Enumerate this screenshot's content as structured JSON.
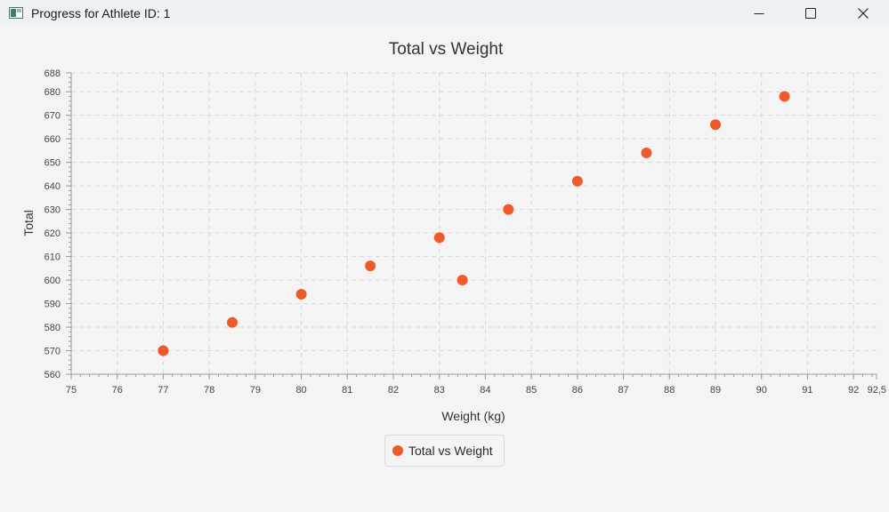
{
  "window": {
    "title": "Progress for Athlete ID: 1",
    "icon": "app-window-icon",
    "controls": [
      "minimize-icon",
      "maximize-icon",
      "close-icon"
    ]
  },
  "colors": {
    "accent": "#f05a2a",
    "grid": "#d9d9d9",
    "titlebar": "#eef2f7",
    "background": "#f4f4f4"
  },
  "chart_data": {
    "type": "scatter",
    "title": "Total vs Weight",
    "xlabel": "Weight (kg)",
    "ylabel": "Total",
    "xlim": [
      75,
      92.5
    ],
    "ylim": [
      560,
      688
    ],
    "x_ticks": [
      "75",
      "76",
      "77",
      "78",
      "79",
      "80",
      "81",
      "82",
      "83",
      "84",
      "85",
      "86",
      "87",
      "88",
      "89",
      "90",
      "91",
      "92",
      "92,5"
    ],
    "y_ticks": [
      "560",
      "570",
      "580",
      "590",
      "600",
      "610",
      "620",
      "630",
      "640",
      "650",
      "660",
      "670",
      "680",
      "688"
    ],
    "grid": true,
    "legend": "bottom-center",
    "series": [
      {
        "name": "Total vs Weight",
        "color": "#f05a2a",
        "points": [
          {
            "x": 77,
            "y": 570
          },
          {
            "x": 78.5,
            "y": 582
          },
          {
            "x": 80,
            "y": 594
          },
          {
            "x": 81.5,
            "y": 606
          },
          {
            "x": 83,
            "y": 618
          },
          {
            "x": 83.5,
            "y": 600
          },
          {
            "x": 84.5,
            "y": 630
          },
          {
            "x": 86,
            "y": 642
          },
          {
            "x": 87.5,
            "y": 654
          },
          {
            "x": 89,
            "y": 666
          },
          {
            "x": 90.5,
            "y": 678
          }
        ]
      }
    ]
  }
}
